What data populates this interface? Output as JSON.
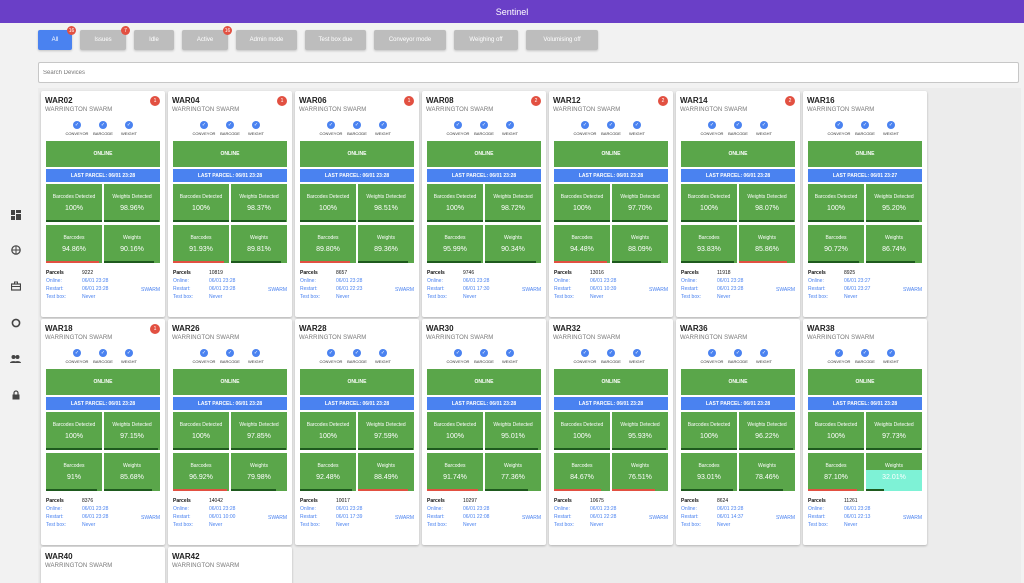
{
  "app": {
    "title": "Sentinel"
  },
  "filters": [
    {
      "label": "All",
      "badge": "16",
      "active": true
    },
    {
      "label": "Issues",
      "badge": "7",
      "active": false
    },
    {
      "label": "Idle",
      "badge": "",
      "active": false
    },
    {
      "label": "Active",
      "badge": "16",
      "active": false
    },
    {
      "label": "Admin mode",
      "badge": "",
      "active": false
    },
    {
      "label": "Test box due",
      "badge": "",
      "active": false
    },
    {
      "label": "Conveyor mode",
      "badge": "",
      "active": false
    },
    {
      "label": "Weighing off",
      "badge": "",
      "active": false
    },
    {
      "label": "Volumising off",
      "badge": "",
      "active": false
    }
  ],
  "search": {
    "placeholder": "Search Devices"
  },
  "nav_icons": [
    "dashboard-icon",
    "globe-icon",
    "toolbox-icon",
    "sync-icon",
    "people-icon",
    "lock-icon"
  ],
  "labels": {
    "conveyor": "CONVEYOR",
    "barcode": "BARCODE",
    "weight": "WEIGHT",
    "barcodes_detected": "Barcodes Detected",
    "weights_detected": "Weights Detected",
    "barcodes": "Barcodes",
    "weights": "Weights",
    "parcels": "Parcels",
    "online": "Online:",
    "restart": "Restart:",
    "test_box": "Test box:"
  },
  "devices": [
    {
      "name": "WAR02",
      "site": "WARRINGTON SWARM",
      "badge": "1",
      "status": "ONLINE",
      "last_parcel": "LAST PARCEL: 06/01 23:28",
      "barcodes_detected": "100%",
      "weights_detected": "98.96%",
      "barcodes": "94.86%",
      "weights": "90.16%",
      "parcels": "9222",
      "online": "06/01 23:28",
      "restart": "06/01 23:28",
      "test_box": "Never",
      "location": "SWARM"
    },
    {
      "name": "WAR04",
      "site": "WARRINGTON SWARM",
      "badge": "1",
      "status": "ONLINE",
      "last_parcel": "LAST PARCEL: 06/01 23:28",
      "barcodes_detected": "100%",
      "weights_detected": "98.37%",
      "barcodes": "91.93%",
      "weights": "89.81%",
      "parcels": "10819",
      "online": "06/01 23:28",
      "restart": "06/01 23:28",
      "test_box": "Never",
      "location": "SWARM"
    },
    {
      "name": "WAR06",
      "site": "WARRINGTON SWARM",
      "badge": "1",
      "status": "ONLINE",
      "last_parcel": "LAST PARCEL: 06/01 23:28",
      "barcodes_detected": "100%",
      "weights_detected": "98.51%",
      "barcodes": "89.80%",
      "weights": "89.36%",
      "parcels": "8657",
      "online": "06/01 23:28",
      "restart": "06/01 22:23",
      "test_box": "Never",
      "location": "SWARM"
    },
    {
      "name": "WAR08",
      "site": "WARRINGTON SWARM",
      "badge": "2",
      "status": "ONLINE",
      "last_parcel": "LAST PARCEL: 06/01 23:28",
      "barcodes_detected": "100%",
      "weights_detected": "98.72%",
      "barcodes": "95.99%",
      "weights": "90.34%",
      "parcels": "9746",
      "online": "06/01 23:28",
      "restart": "06/01 17:30",
      "test_box": "Never",
      "location": "SWARM"
    },
    {
      "name": "WAR12",
      "site": "WARRINGTON SWARM",
      "badge": "2",
      "status": "ONLINE",
      "last_parcel": "LAST PARCEL: 06/01 23:28",
      "barcodes_detected": "100%",
      "weights_detected": "97.70%",
      "barcodes": "94.48%",
      "weights": "88.09%",
      "parcels": "13016",
      "online": "06/01 23:28",
      "restart": "06/01 10:39",
      "test_box": "Never",
      "location": "SWARM"
    },
    {
      "name": "WAR14",
      "site": "WARRINGTON SWARM",
      "badge": "2",
      "status": "ONLINE",
      "last_parcel": "LAST PARCEL: 06/01 23:28",
      "barcodes_detected": "100%",
      "weights_detected": "98.07%",
      "barcodes": "93.83%",
      "weights": "85.86%",
      "parcels": "11918",
      "online": "06/01 23:28",
      "restart": "06/01 23:28",
      "test_box": "Never",
      "location": "SWARM"
    },
    {
      "name": "WAR16",
      "site": "WARRINGTON SWARM",
      "badge": "",
      "status": "ONLINE",
      "last_parcel": "LAST PARCEL: 06/01 23:27",
      "barcodes_detected": "100%",
      "weights_detected": "95.20%",
      "barcodes": "90.72%",
      "weights": "86.74%",
      "parcels": "8925",
      "online": "06/01 23:27",
      "restart": "06/01 23:27",
      "test_box": "Never",
      "location": "SWARM"
    },
    {
      "name": "WAR18",
      "site": "WARRINGTON SWARM",
      "badge": "1",
      "status": "ONLINE",
      "last_parcel": "LAST PARCEL: 06/01 23:28",
      "barcodes_detected": "100%",
      "weights_detected": "97.15%",
      "barcodes": "91%",
      "weights": "85.68%",
      "parcels": "8376",
      "online": "06/01 23:28",
      "restart": "06/01 23:28",
      "test_box": "Never",
      "location": "SWARM"
    },
    {
      "name": "WAR26",
      "site": "WARRINGTON SWARM",
      "badge": "",
      "status": "ONLINE",
      "last_parcel": "LAST PARCEL: 06/01 23:28",
      "barcodes_detected": "100%",
      "weights_detected": "97.85%",
      "barcodes": "96.92%",
      "weights": "79.98%",
      "parcels": "14042",
      "online": "06/01 23:28",
      "restart": "06/01 10:00",
      "test_box": "Never",
      "location": "SWARM"
    },
    {
      "name": "WAR28",
      "site": "WARRINGTON SWARM",
      "badge": "",
      "status": "ONLINE",
      "last_parcel": "LAST PARCEL: 06/01 23:28",
      "barcodes_detected": "100%",
      "weights_detected": "97.59%",
      "barcodes": "92.48%",
      "weights": "88.49%",
      "parcels": "10017",
      "online": "06/01 23:28",
      "restart": "06/01 17:39",
      "test_box": "Never",
      "location": "SWARM"
    },
    {
      "name": "WAR30",
      "site": "WARRINGTON SWARM",
      "badge": "",
      "status": "ONLINE",
      "last_parcel": "LAST PARCEL: 06/01 23:28",
      "barcodes_detected": "100%",
      "weights_detected": "95.01%",
      "barcodes": "91.74%",
      "weights": "77.36%",
      "parcels": "10297",
      "online": "06/01 23:28",
      "restart": "06/01 22:08",
      "test_box": "Never",
      "location": "SWARM"
    },
    {
      "name": "WAR32",
      "site": "WARRINGTON SWARM",
      "badge": "",
      "status": "ONLINE",
      "last_parcel": "LAST PARCEL: 06/01 23:28",
      "barcodes_detected": "100%",
      "weights_detected": "95.93%",
      "barcodes": "84.67%",
      "weights": "76.51%",
      "parcels": "10675",
      "online": "06/01 23:28",
      "restart": "06/01 22:28",
      "test_box": "Never",
      "location": "SWARM"
    },
    {
      "name": "WAR36",
      "site": "WARRINGTON SWARM",
      "badge": "",
      "status": "ONLINE",
      "last_parcel": "LAST PARCEL: 06/01 23:28",
      "barcodes_detected": "100%",
      "weights_detected": "96.22%",
      "barcodes": "93.01%",
      "weights": "78.46%",
      "parcels": "8624",
      "online": "06/01 23:28",
      "restart": "06/01 14:37",
      "test_box": "Never",
      "location": "SWARM"
    },
    {
      "name": "WAR38",
      "site": "WARRINGTON SWARM",
      "badge": "",
      "status": "ONLINE",
      "last_parcel": "LAST PARCEL: 06/01 23:28",
      "barcodes_detected": "100%",
      "weights_detected": "97.73%",
      "barcodes": "87.10%",
      "weights": "32.01%",
      "parcels": "11261",
      "online": "06/01 23:28",
      "restart": "06/01 22:13",
      "test_box": "Never",
      "location": "SWARM"
    },
    {
      "name": "WAR40",
      "site": "WARRINGTON SWARM",
      "badge": "",
      "partial": true
    },
    {
      "name": "WAR42",
      "site": "WARRINGTON SWARM",
      "badge": "",
      "partial": true
    }
  ]
}
